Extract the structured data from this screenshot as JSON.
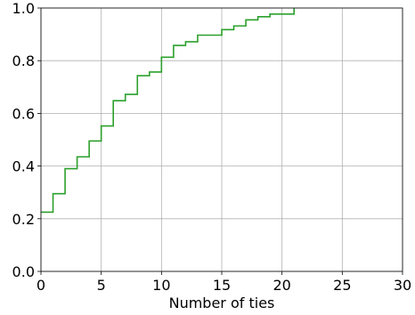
{
  "chart_data": {
    "type": "line",
    "drawstyle": "steps-post",
    "title": "",
    "xlabel": "Number of ties",
    "ylabel": "",
    "xlim": [
      0,
      30
    ],
    "ylim": [
      0.0,
      1.0
    ],
    "xticks": [
      0,
      5,
      10,
      15,
      20,
      25,
      30
    ],
    "xtick_labels": [
      "0",
      "5",
      "10",
      "15",
      "20",
      "25",
      "30"
    ],
    "yticks": [
      0.0,
      0.2,
      0.4,
      0.6,
      0.8,
      1.0
    ],
    "ytick_labels": [
      "0.0",
      "0.2",
      "0.4",
      "0.6",
      "0.8",
      "1.0"
    ],
    "grid": true,
    "legend": "none",
    "series": [
      {
        "color": "#2ca02c",
        "x": [
          0,
          1,
          2,
          3,
          4,
          5,
          6,
          7,
          8,
          9,
          10,
          11,
          12,
          13,
          14,
          15,
          16,
          17,
          18,
          19,
          20,
          21
        ],
        "y": [
          0.225,
          0.295,
          0.39,
          0.435,
          0.495,
          0.552,
          0.648,
          0.672,
          0.743,
          0.757,
          0.813,
          0.858,
          0.872,
          0.897,
          0.897,
          0.918,
          0.932,
          0.955,
          0.967,
          0.977,
          0.977,
          1.0
        ]
      }
    ]
  }
}
